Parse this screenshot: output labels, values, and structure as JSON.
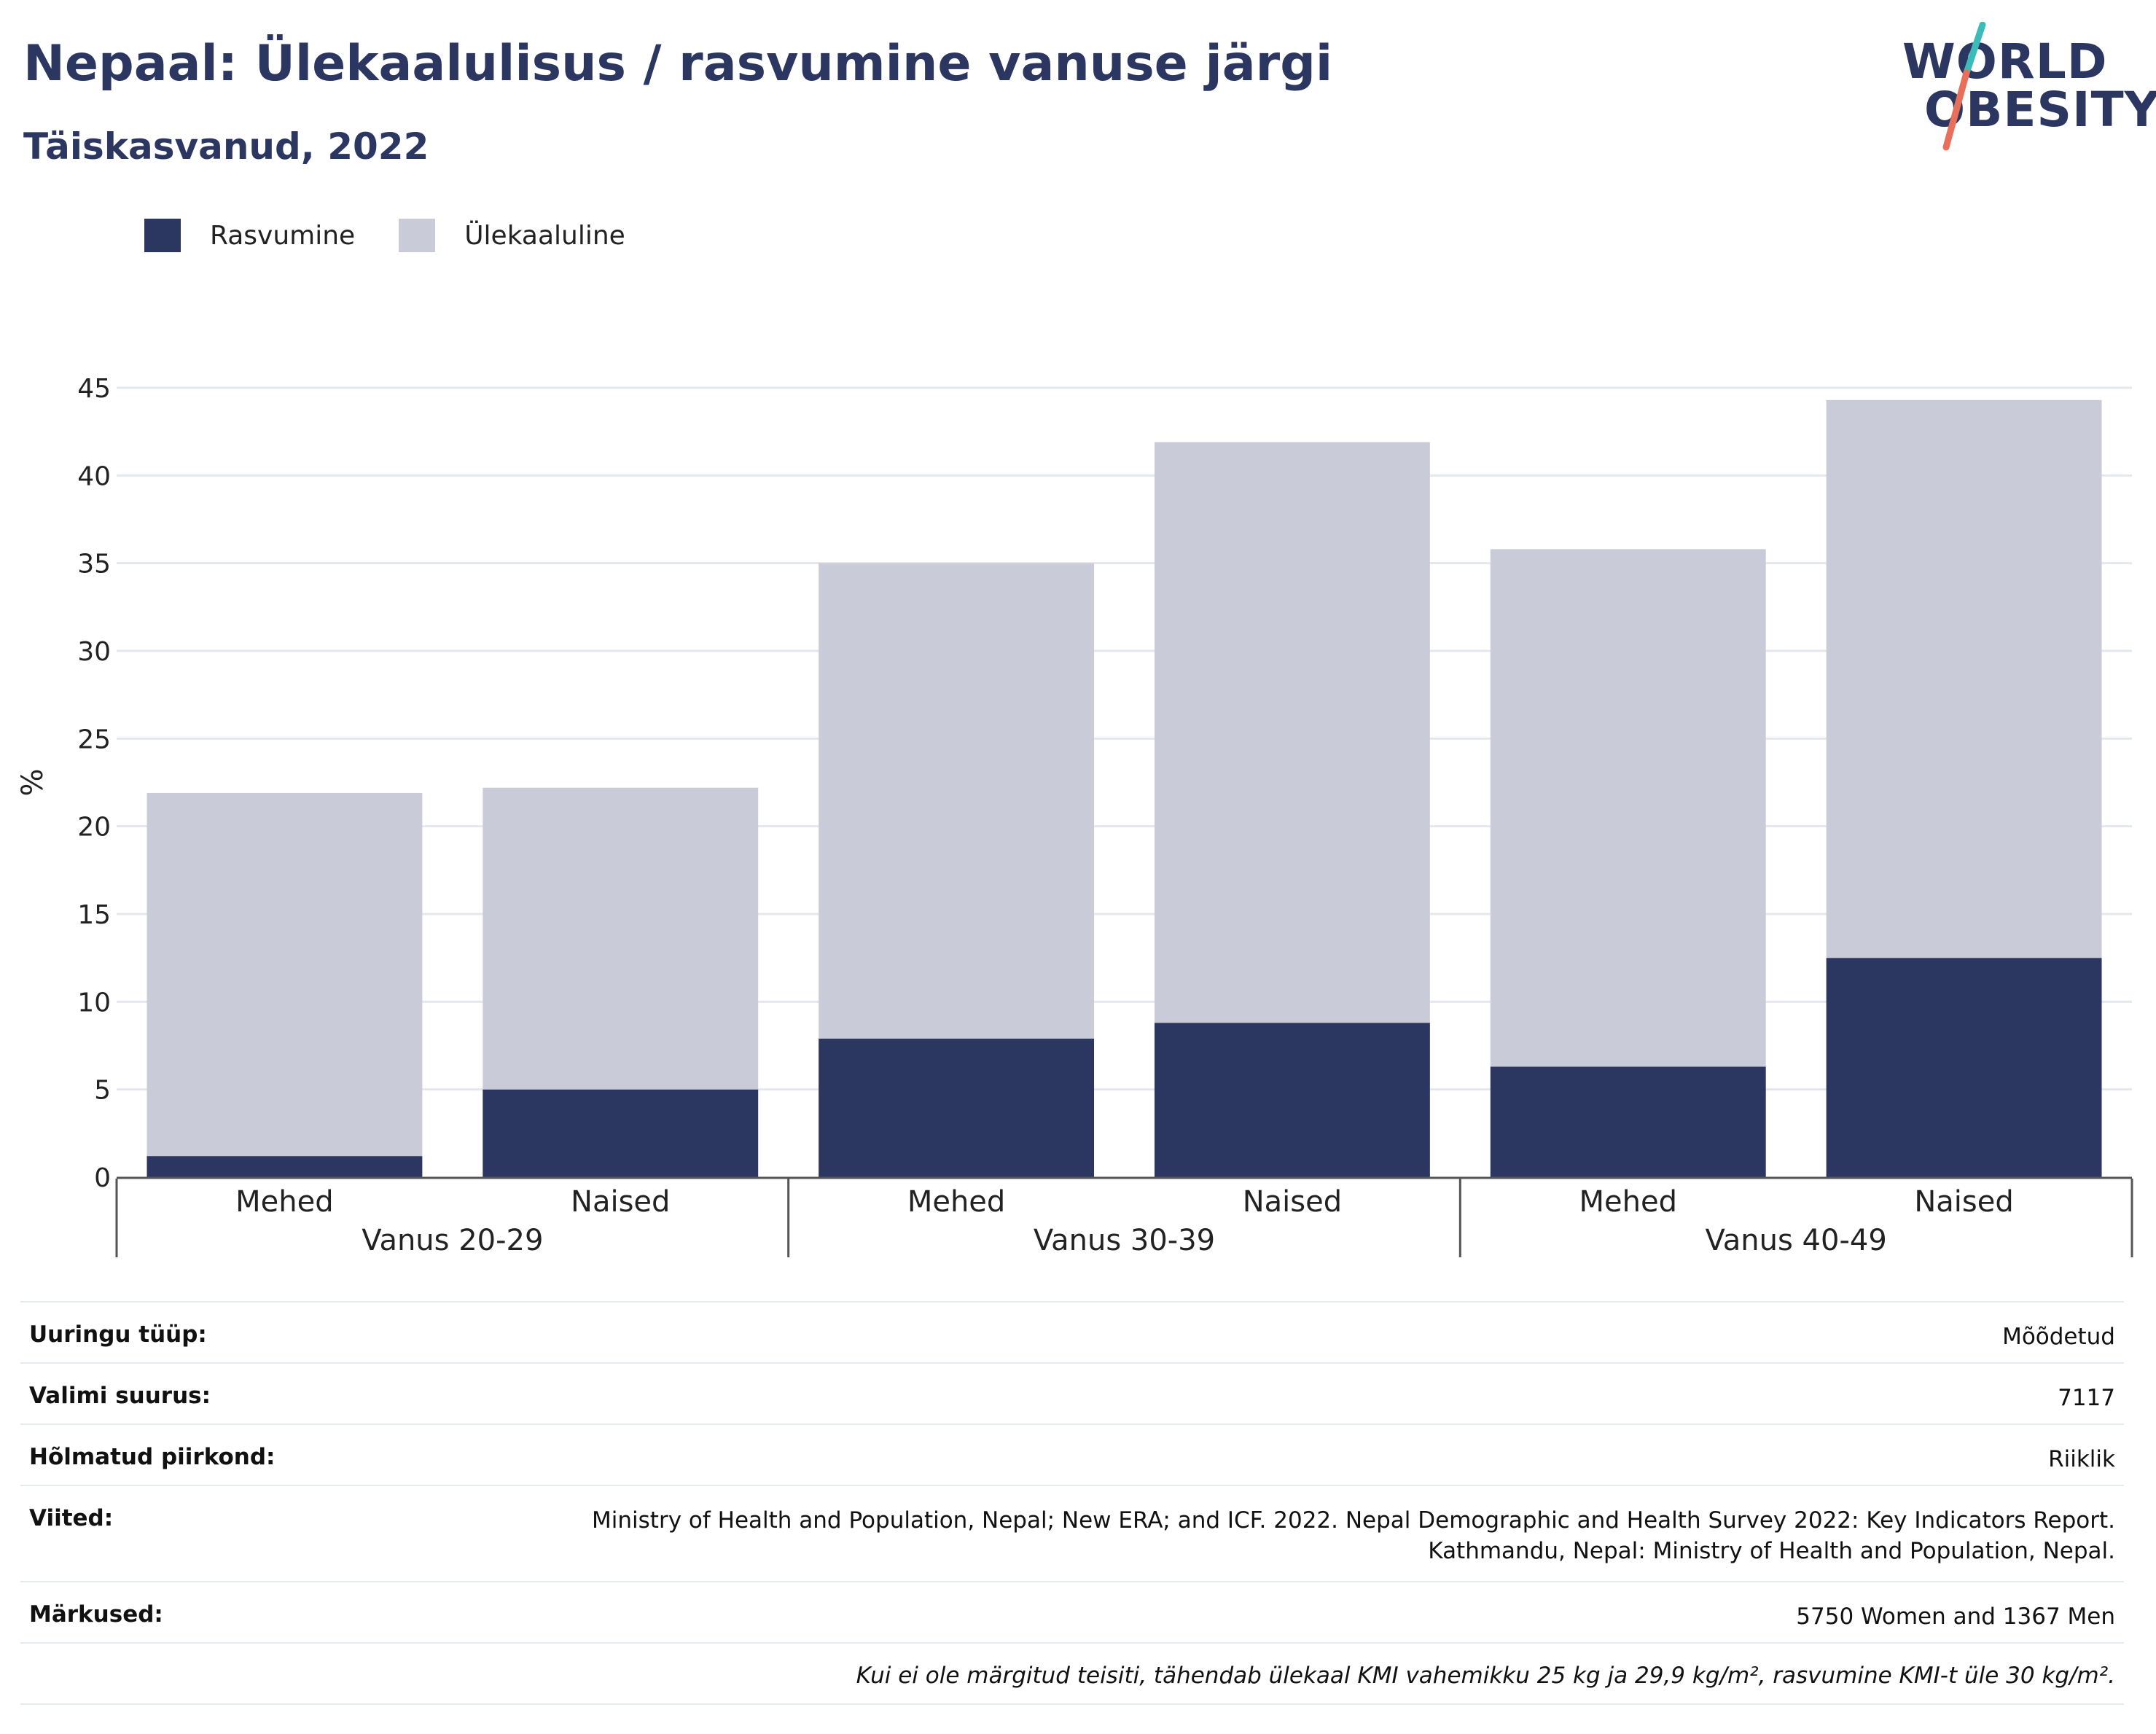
{
  "header": {
    "title": "Nepaal: Ülekaalulisus / rasvumine vanuse järgi",
    "subtitle": "Täiskasvanud, 2022"
  },
  "logo": {
    "line1": "WORLD",
    "line2": "OBESITY",
    "colors": {
      "text": "#2b3661",
      "slash_top": "#3bbcb8",
      "slash_bottom": "#e8705a"
    }
  },
  "colors": {
    "obesity": "#2b3661",
    "overweight": "#c9ccd8",
    "grid": "#e5e7ee",
    "axis": "#555555"
  },
  "chart_data": {
    "type": "bar",
    "stacked": true,
    "ylabel": "%",
    "ylim": [
      0,
      45
    ],
    "yticks": [
      0,
      5,
      10,
      15,
      20,
      25,
      30,
      35,
      40,
      45
    ],
    "grid": true,
    "legend_position": "top-left",
    "groups": [
      "Vanus 20-29",
      "Vanus 30-39",
      "Vanus 40-49"
    ],
    "categories": [
      "Mehed",
      "Naised",
      "Mehed",
      "Naised",
      "Mehed",
      "Naised"
    ],
    "group_index": [
      0,
      0,
      1,
      1,
      2,
      2
    ],
    "series": [
      {
        "name": "Rasvumine",
        "values": [
          1.2,
          5.0,
          7.9,
          8.8,
          6.3,
          12.5
        ]
      },
      {
        "name": "Ülekaaluline",
        "values": [
          20.7,
          17.2,
          27.1,
          33.1,
          29.5,
          31.8
        ]
      }
    ]
  },
  "meta": {
    "rows": [
      {
        "label": "Uuringu tüüp:",
        "value": "Mõõdetud"
      },
      {
        "label": "Valimi suurus:",
        "value": "7117"
      },
      {
        "label": "Hõlmatud piirkond:",
        "value": "Riiklik"
      }
    ],
    "references": {
      "label": "Viited:",
      "line1": "Ministry of Health and Population, Nepal; New ERA; and ICF. 2022. Nepal Demographic and Health Survey 2022: Key Indicators Report.",
      "line2": "Kathmandu, Nepal: Ministry of Health and Population, Nepal."
    },
    "remarks": {
      "label": "Märkused:",
      "value": "5750 Women and 1367 Men"
    },
    "footnote": "Kui ei ole märgitud teisiti, tähendab ülekaal KMI vahemikku 25 kg ja 29,9 kg/m², rasvumine KMI-t üle 30 kg/m²."
  }
}
